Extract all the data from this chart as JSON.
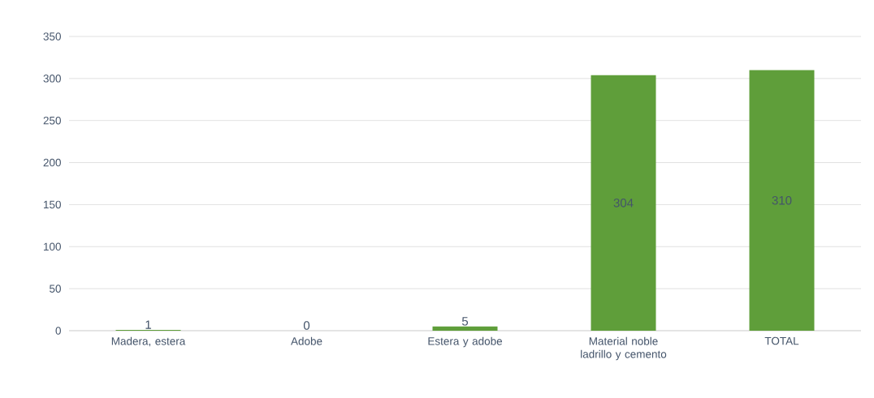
{
  "chart_data": {
    "type": "bar",
    "categories": [
      "Madera, estera",
      "Adobe",
      "Estera y adobe",
      "Material noble ladrillo y cemento",
      "TOTAL"
    ],
    "values": [
      1,
      0,
      5,
      304,
      310
    ],
    "color": "#5f9e3a",
    "data_labels": true,
    "ylim": [
      0,
      350
    ],
    "yticks": [
      0,
      50,
      100,
      150,
      200,
      250,
      300,
      350
    ],
    "grid": "y"
  }
}
